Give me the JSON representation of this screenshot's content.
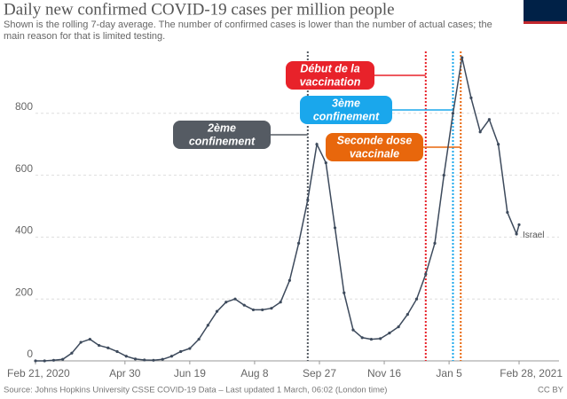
{
  "chart_data": {
    "type": "line",
    "title": "Daily new confirmed COVID-19 cases per million people",
    "subtitle": "Shown is the rolling 7-day average. The number of confirmed cases is lower than the number of actual cases; the main reason for that is limited testing.",
    "source": "Source: Johns Hopkins University CSSE COVID-19 Data – Last updated 1 March, 06:02 (London time)",
    "license": "CC BY",
    "x": [
      "2020-02-21",
      "2020-02-28",
      "2020-03-06",
      "2020-03-13",
      "2020-03-20",
      "2020-03-27",
      "2020-04-03",
      "2020-04-10",
      "2020-04-17",
      "2020-04-24",
      "2020-05-01",
      "2020-05-08",
      "2020-05-15",
      "2020-05-22",
      "2020-05-29",
      "2020-06-05",
      "2020-06-12",
      "2020-06-19",
      "2020-06-26",
      "2020-07-03",
      "2020-07-10",
      "2020-07-17",
      "2020-07-24",
      "2020-07-31",
      "2020-08-07",
      "2020-08-14",
      "2020-08-21",
      "2020-08-28",
      "2020-09-04",
      "2020-09-11",
      "2020-09-18",
      "2020-09-25",
      "2020-10-02",
      "2020-10-09",
      "2020-10-16",
      "2020-10-23",
      "2020-10-30",
      "2020-11-06",
      "2020-11-13",
      "2020-11-20",
      "2020-11-27",
      "2020-12-04",
      "2020-12-11",
      "2020-12-18",
      "2020-12-25",
      "2021-01-01",
      "2021-01-08",
      "2021-01-15",
      "2021-01-22",
      "2021-01-29",
      "2021-02-05",
      "2021-02-12",
      "2021-02-19",
      "2021-02-26",
      "2021-02-28"
    ],
    "series": [
      {
        "name": "Israel",
        "color": "#3d4a5c",
        "values": [
          0,
          0,
          2,
          5,
          25,
          60,
          70,
          50,
          42,
          30,
          15,
          6,
          3,
          2,
          5,
          15,
          30,
          40,
          70,
          115,
          160,
          190,
          200,
          180,
          165,
          165,
          170,
          190,
          260,
          380,
          520,
          700,
          640,
          430,
          220,
          100,
          75,
          70,
          72,
          90,
          110,
          150,
          200,
          280,
          380,
          600,
          800,
          980,
          850,
          740,
          780,
          700,
          480,
          410,
          440
        ]
      }
    ],
    "xlim": [
      "2020-02-21",
      "2021-02-28"
    ],
    "xticks": [
      {
        "value": "2020-02-21",
        "label": "Feb 21, 2020"
      },
      {
        "value": "2020-04-30",
        "label": "Apr 30"
      },
      {
        "value": "2020-06-19",
        "label": "Jun 19"
      },
      {
        "value": "2020-08-08",
        "label": "Aug 8"
      },
      {
        "value": "2020-09-27",
        "label": "Sep 27"
      },
      {
        "value": "2020-11-16",
        "label": "Nov 16"
      },
      {
        "value": "2021-01-05",
        "label": "Jan 5"
      },
      {
        "value": "2021-02-28",
        "label": "Feb 28, 2021"
      }
    ],
    "ylim": [
      0,
      1000
    ],
    "yticks": [
      0,
      200,
      400,
      600,
      800
    ],
    "grid": true,
    "annotations": [
      {
        "x": "2020-09-18",
        "color": "#555b63",
        "text": [
          "2ème",
          "confinement"
        ]
      },
      {
        "x": "2020-12-18",
        "color": "#e8222a",
        "text": [
          "Début de la",
          "vaccination"
        ]
      },
      {
        "x": "2021-01-08",
        "color": "#1aa7ec",
        "text": [
          "3ème",
          "confinement"
        ]
      },
      {
        "x": "2021-01-14",
        "color": "#e8670c",
        "text": [
          "Seconde dose",
          "vaccinale"
        ]
      }
    ]
  }
}
